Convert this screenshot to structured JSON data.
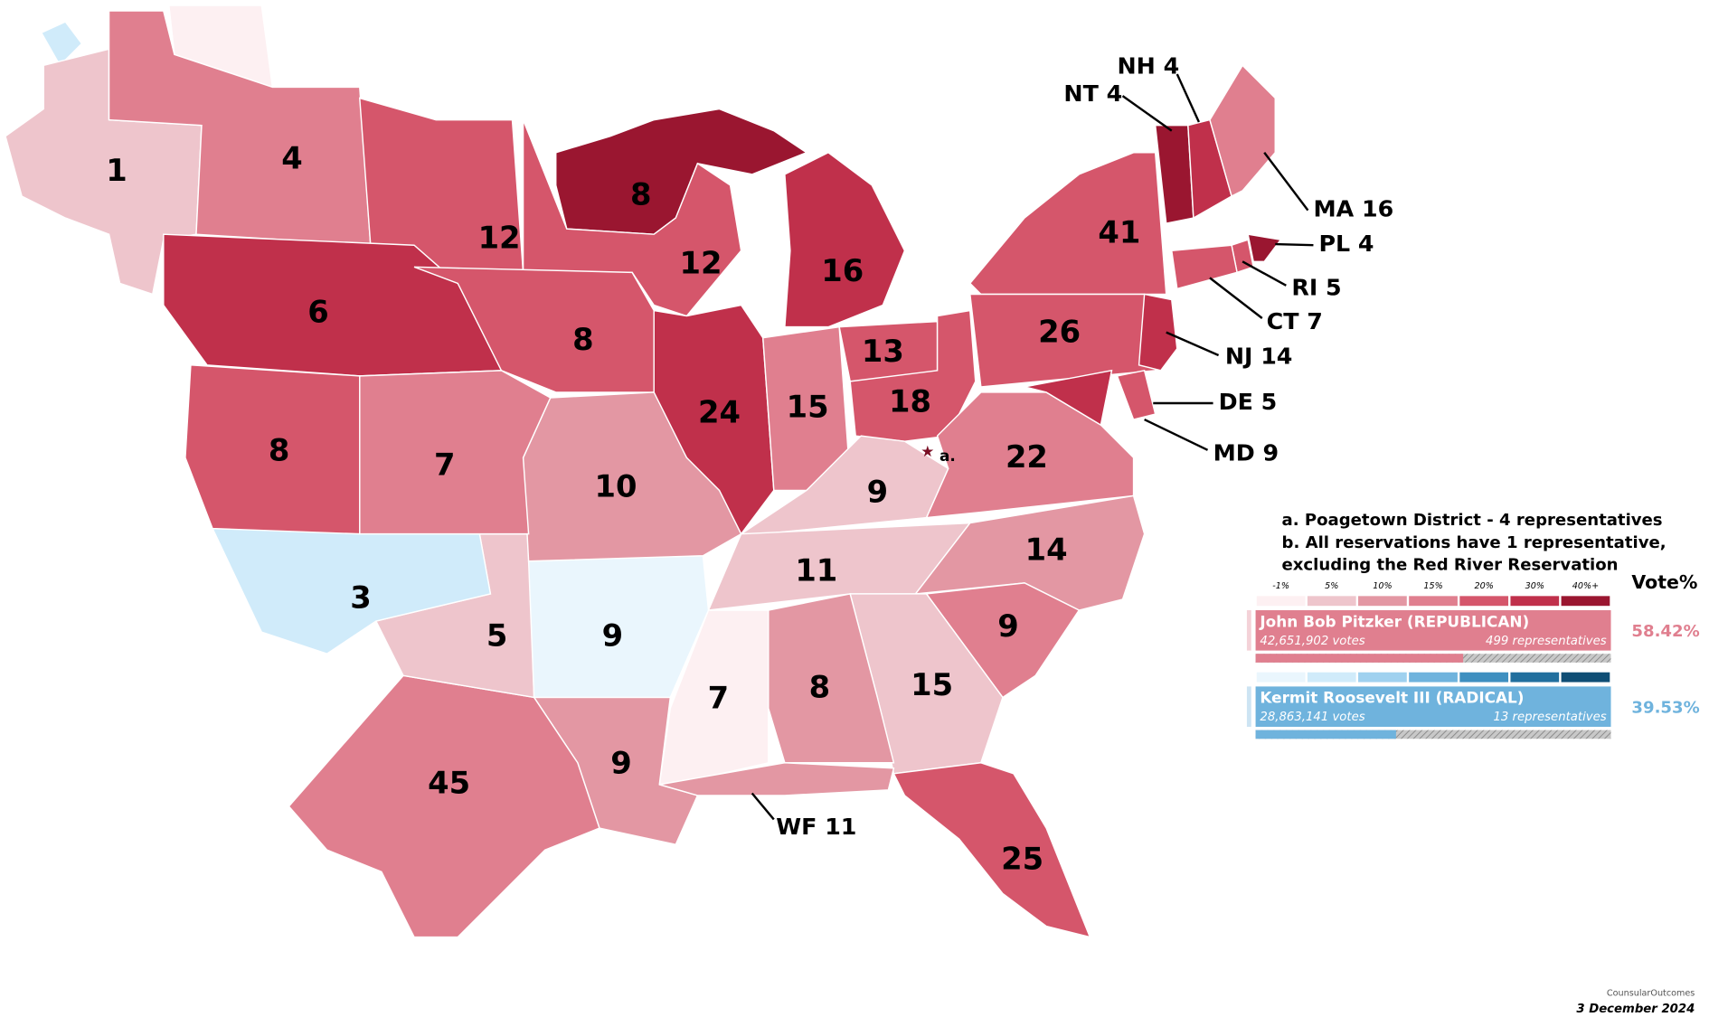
{
  "regions": [
    {
      "label": 1,
      "color": "#eec5cc"
    },
    {
      "label": 4,
      "color": "#e07f8f"
    },
    {
      "label": 12,
      "color": "#d5566b"
    },
    {
      "label": 6,
      "color": "#c0304b"
    },
    {
      "label": 8,
      "color": "#9a1630"
    },
    {
      "label": 12,
      "color": "#d5566b"
    },
    {
      "label": 8,
      "color": "#d5566b"
    },
    {
      "label": 24,
      "color": "#c0304b"
    },
    {
      "label": 16,
      "color": "#c0304b"
    },
    {
      "label": 15,
      "color": "#e07f8f"
    },
    {
      "label": 13,
      "color": "#d5566b"
    },
    {
      "label": 18,
      "color": "#d5566b"
    },
    {
      "label": 41,
      "color": "#d5566b"
    },
    {
      "label": 26,
      "color": "#d5566b"
    },
    {
      "label": 22,
      "color": "#e07f8f"
    },
    {
      "label": 9,
      "color": "#eec5cc"
    },
    {
      "label": 11,
      "color": "#eec5cc"
    },
    {
      "label": 14,
      "color": "#e397a3"
    },
    {
      "label": 9,
      "color": "#e07f8f"
    },
    {
      "label": 15,
      "color": "#eec5cc"
    },
    {
      "label": 8,
      "color": "#e397a3"
    },
    {
      "label": 7,
      "color": "#fdf0f2"
    },
    {
      "label": 9,
      "color": "#e397a3"
    },
    {
      "label": 25,
      "color": "#d5566b"
    },
    {
      "label": 45,
      "color": "#e07f8f"
    },
    {
      "label": 5,
      "color": "#eec5cc"
    },
    {
      "label": 3,
      "color": "#d0ebfa"
    },
    {
      "label": 9,
      "color": "#eaf6fd"
    },
    {
      "label": 10,
      "color": "#e397a3"
    },
    {
      "label": 7,
      "color": "#e07f8f"
    },
    {
      "label": 8,
      "color": "#d5566b"
    },
    {
      "label": "NT 4",
      "color": "#9a1630"
    },
    {
      "label": "NH 4",
      "color": "#c0304b"
    },
    {
      "label": "MA 16",
      "color": "#e07f8f"
    },
    {
      "label": "PL 4",
      "color": "#9a1630"
    },
    {
      "label": "RI 5",
      "color": "#d5566b"
    },
    {
      "label": "CT 7",
      "color": "#d5566b"
    },
    {
      "label": "NJ 14",
      "color": "#c0304b"
    },
    {
      "label": "DE 5",
      "color": "#d5566b"
    },
    {
      "label": "MD 9",
      "color": "#c0304b"
    },
    {
      "label": "WF 11",
      "color": "#e397a3"
    }
  ],
  "marker": "a.",
  "notes": [
    "a. Poagetown District - 4 representatives",
    "b. All reservations have 1 representative,",
    "excluding the Red River Reservation"
  ],
  "legend": {
    "ticks": [
      "-1%",
      "5%",
      "10%",
      "15%",
      "20%",
      "30%",
      "40%+"
    ],
    "header": "Vote%",
    "red_scale": [
      "#fdf0f2",
      "#eec5cc",
      "#e397a3",
      "#e07f8f",
      "#d5566b",
      "#c0304b",
      "#9a1630"
    ],
    "blue_scale": [
      "#eaf6fd",
      "#d0ebfa",
      "#9fd1ef",
      "#6fb3dd",
      "#3e8fc0",
      "#216f9e",
      "#0f4e75"
    ]
  },
  "candidates": [
    {
      "name": "John Bob Pitzker (REPUBLICAN)",
      "votes": "42,651,902  votes",
      "representatives": "499 representatives",
      "vote_share": 58.42,
      "vote_share_label": "58.42%",
      "color": "#e07f8f"
    },
    {
      "name": "Kermit Roosevelt III (RADICAL)",
      "votes": "28,863,141 votes",
      "representatives": "13 representatives",
      "vote_share": 39.53,
      "vote_share_label": "39.53%",
      "color": "#6fb3dd"
    }
  ],
  "credit": "CounsularOutcomes",
  "date": "3 December 2024"
}
